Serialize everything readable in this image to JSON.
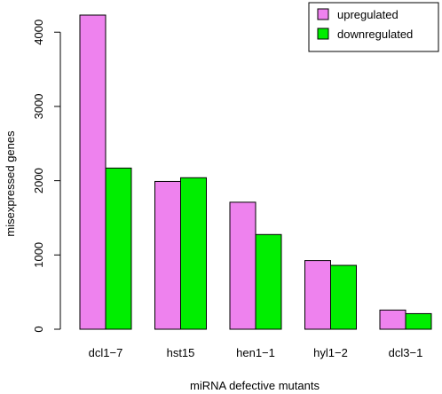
{
  "chart_data": {
    "type": "bar",
    "xlabel": "miRNA defective mutants",
    "ylabel": "misexpressed genes",
    "categories": [
      "dcl1−7",
      "hst15",
      "hen1−1",
      "hyl1−2",
      "dcl3−1"
    ],
    "series": [
      {
        "name": "upregulated",
        "color": "#ee82ee",
        "values": [
          4230,
          1990,
          1710,
          925,
          258
        ]
      },
      {
        "name": "downregulated",
        "color": "#00ee00",
        "values": [
          2170,
          2040,
          1275,
          860,
          210
        ]
      }
    ],
    "yticks": [
      0,
      1000,
      2000,
      3000,
      4000
    ],
    "ylim": [
      0,
      4400
    ],
    "legend_position": "top-right",
    "grid": false
  }
}
